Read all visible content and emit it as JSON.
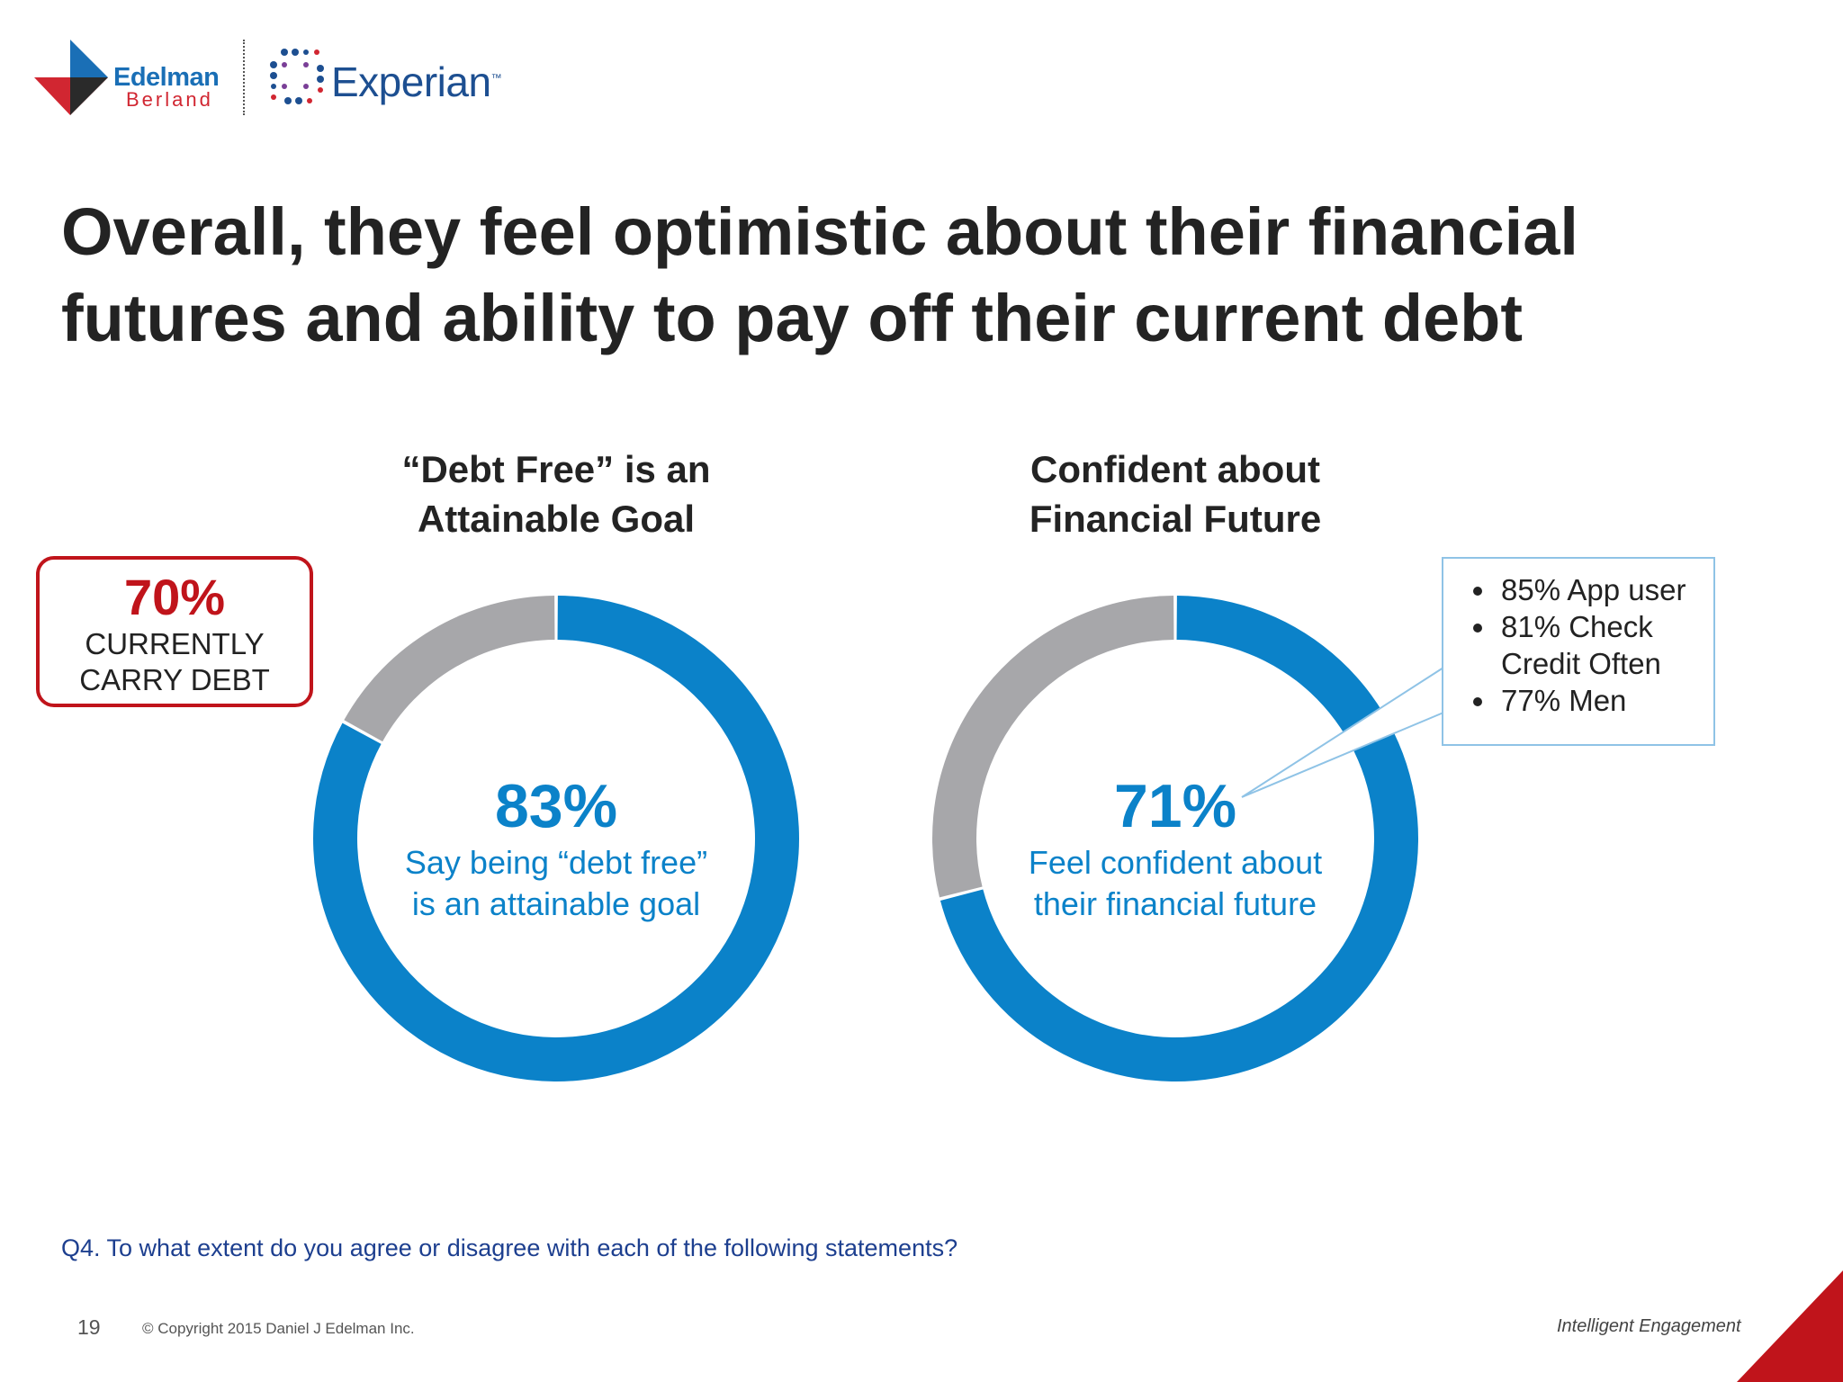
{
  "logos": {
    "edelman": "Edelman",
    "berland": "Berland",
    "experian": "Experian",
    "experian_tm": "™",
    "brand_colors": {
      "edelman_blue": "#1a6fb6",
      "edelman_red": "#d12631",
      "experian_blue": "#1d4f91"
    }
  },
  "title": "Overall, they feel optimistic about their financial futures and ability to pay off their current debt",
  "debt_box": {
    "value": "70%",
    "line1": "CURRENTLY",
    "line2": "CARRY DEBT",
    "color": "#c0141b"
  },
  "callout": {
    "items": [
      "85% App user",
      "81% Check Credit Often",
      "77% Men"
    ]
  },
  "chart_data": [
    {
      "type": "pie",
      "title_lines": [
        "“Debt Free” is an",
        "Attainable Goal"
      ],
      "center_value": "83%",
      "center_text_lines": [
        "Say being “debt free”",
        "is an attainable goal"
      ],
      "values": [
        83,
        17
      ],
      "colors": [
        "#0b82c9",
        "#a7a7aa"
      ]
    },
    {
      "type": "pie",
      "title_lines": [
        "Confident about",
        "Financial Future"
      ],
      "center_value": "71%",
      "center_text_lines": [
        "Feel confident about",
        "their financial future"
      ],
      "values": [
        71,
        29
      ],
      "colors": [
        "#0b82c9",
        "#a7a7aa"
      ]
    }
  ],
  "question": "Q4. To what extent do you agree or disagree with each of the following statements?",
  "footer": {
    "page": "19",
    "copyright": "© Copyright 2015 Daniel J Edelman Inc.",
    "tagline": "Intelligent Engagement"
  }
}
